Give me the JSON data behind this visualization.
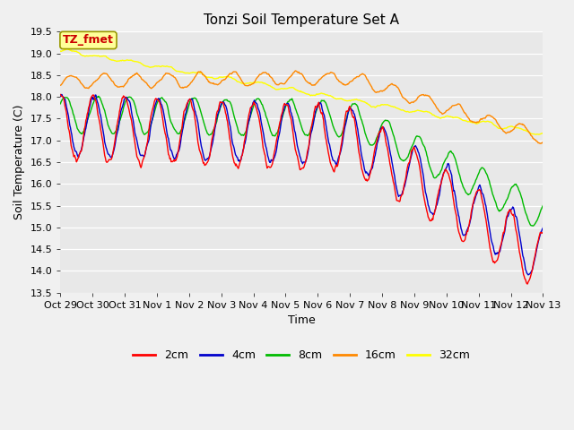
{
  "title": "Tonzi Soil Temperature Set A",
  "xlabel": "Time",
  "ylabel": "Soil Temperature (C)",
  "ylim": [
    13.5,
    19.5
  ],
  "fig_bg_color": "#f0f0f0",
  "plot_bg_color": "#e8e8e8",
  "annotation_text": "TZ_fmet",
  "annotation_bg": "#ffff99",
  "annotation_border": "#999900",
  "annotation_text_color": "#cc0000",
  "xtick_labels": [
    "Oct 29",
    "Oct 30",
    "Oct 31",
    "Nov 1",
    "Nov 2",
    "Nov 3",
    "Nov 4",
    "Nov 5",
    "Nov 6",
    "Nov 7",
    "Nov 8",
    "Nov 9",
    "Nov 10",
    "Nov 11",
    "Nov 12",
    "Nov 13"
  ],
  "series_colors": [
    "#ff0000",
    "#0000cc",
    "#00bb00",
    "#ff8800",
    "#ffff00"
  ],
  "series_labels": [
    "2cm",
    "4cm",
    "8cm",
    "16cm",
    "32cm"
  ],
  "line_width": 1.0,
  "legend_fontsize": 9,
  "title_fontsize": 11,
  "tick_fontsize": 8,
  "axis_label_fontsize": 9
}
